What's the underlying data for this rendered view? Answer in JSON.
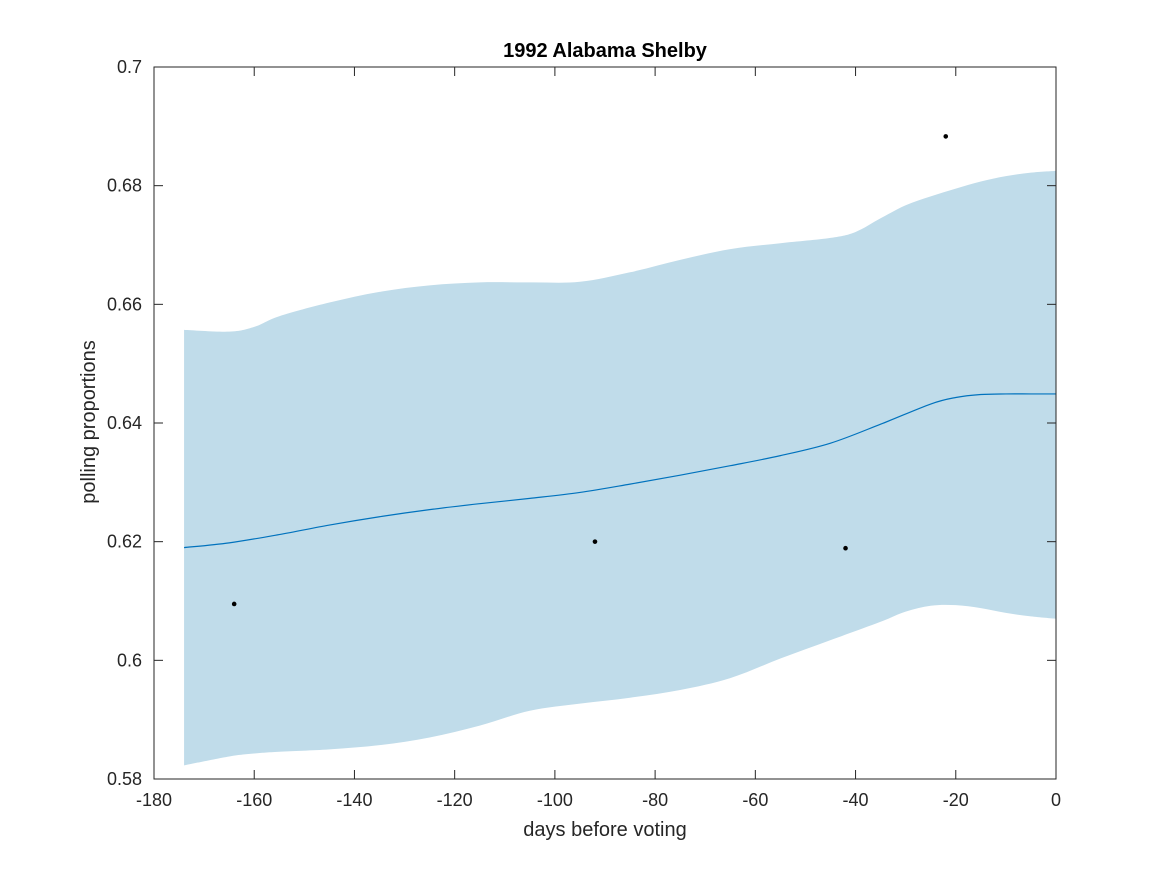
{
  "chart_data": {
    "type": "line",
    "title": "1992 Alabama Shelby",
    "xlabel": "days before voting",
    "ylabel": "polling proportions",
    "xlim": [
      -180,
      0
    ],
    "ylim": [
      0.58,
      0.7
    ],
    "x_ticks": [
      -180,
      -160,
      -140,
      -120,
      -100,
      -80,
      -60,
      -40,
      -20,
      0
    ],
    "y_ticks": [
      0.58,
      0.6,
      0.62,
      0.64,
      0.66,
      0.68,
      0.7
    ],
    "x_tick_labels": [
      "-180",
      "-160",
      "-140",
      "-120",
      "-100",
      "-80",
      "-60",
      "-40",
      "-20",
      "0"
    ],
    "y_tick_labels": [
      "0.58",
      "0.6",
      "0.62",
      "0.64",
      "0.66",
      "0.68",
      "0.7"
    ],
    "grid": false,
    "colors": {
      "band": "#c0dcea",
      "line": "#0072bd",
      "points": "#000000",
      "axis": "#262626"
    },
    "mean": {
      "x": [
        -174,
        -165,
        -155,
        -145,
        -135,
        -125,
        -115,
        -105,
        -95,
        -85,
        -75,
        -65,
        -55,
        -45,
        -35,
        -25,
        -20,
        -15,
        -10,
        -5,
        0
      ],
      "y": [
        0.619,
        0.6198,
        0.6212,
        0.6228,
        0.6242,
        0.6254,
        0.6264,
        0.6273,
        0.6283,
        0.6297,
        0.6312,
        0.6328,
        0.6345,
        0.6366,
        0.6398,
        0.6432,
        0.6443,
        0.6448,
        0.6449,
        0.6449,
        0.6449
      ]
    },
    "band_upper": {
      "x": [
        -174,
        -165,
        -160,
        -155,
        -145,
        -135,
        -125,
        -115,
        -105,
        -95,
        -85,
        -75,
        -65,
        -55,
        -45,
        -40,
        -35,
        -30,
        -25,
        -20,
        -15,
        -10,
        -5,
        0
      ],
      "y": [
        0.6557,
        0.6554,
        0.6562,
        0.658,
        0.6603,
        0.6621,
        0.6632,
        0.6637,
        0.6637,
        0.6638,
        0.6654,
        0.6675,
        0.6693,
        0.6703,
        0.6712,
        0.6722,
        0.6745,
        0.6767,
        0.6782,
        0.6795,
        0.6807,
        0.6816,
        0.6822,
        0.6825
      ]
    },
    "band_lower": {
      "x": [
        -174,
        -165,
        -160,
        -155,
        -145,
        -135,
        -125,
        -115,
        -105,
        -95,
        -85,
        -75,
        -65,
        -55,
        -45,
        -35,
        -30,
        -25,
        -20,
        -15,
        -10,
        -5,
        0
      ],
      "y": [
        0.5823,
        0.5838,
        0.5843,
        0.5846,
        0.585,
        0.5857,
        0.587,
        0.589,
        0.5915,
        0.5927,
        0.5937,
        0.595,
        0.597,
        0.6003,
        0.6034,
        0.6065,
        0.6082,
        0.6092,
        0.6093,
        0.6088,
        0.608,
        0.6074,
        0.607
      ]
    },
    "points": {
      "x": [
        -164,
        -92,
        -42,
        -22
      ],
      "y": [
        0.6095,
        0.62,
        0.6189,
        0.6883
      ]
    }
  }
}
